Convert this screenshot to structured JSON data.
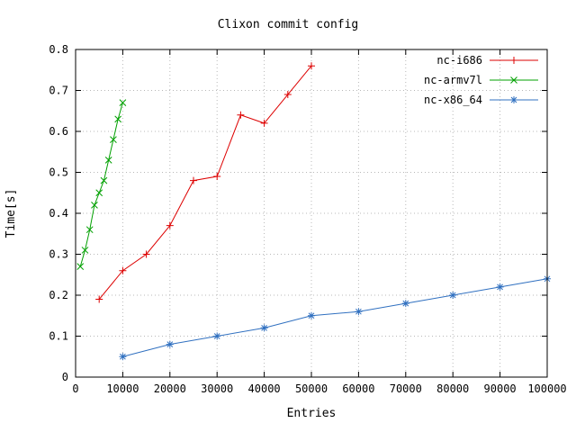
{
  "chart_data": {
    "type": "line",
    "title": "Clixon commit config",
    "xlabel": "Entries",
    "ylabel": "Time[s]",
    "xlim": [
      0,
      100000
    ],
    "ylim": [
      0,
      0.8
    ],
    "grid": true,
    "legend_position": "top-right-inside",
    "xticks": {
      "values": [
        0,
        10000,
        20000,
        30000,
        40000,
        50000,
        60000,
        70000,
        80000,
        90000,
        100000
      ],
      "labels": [
        "0",
        "10000",
        "20000",
        "30000",
        "40000",
        "50000",
        "60000",
        "70000",
        "80000",
        "90000",
        "100000"
      ]
    },
    "yticks": {
      "values": [
        0,
        0.1,
        0.2,
        0.3,
        0.4,
        0.5,
        0.6,
        0.7,
        0.8
      ],
      "labels": [
        "0",
        "0.1",
        "0.2",
        "0.3",
        "0.4",
        "0.5",
        "0.6",
        "0.7",
        "0.8"
      ]
    },
    "series": [
      {
        "name": "nc-i686",
        "color": "#dd0000",
        "marker": "plus",
        "x": [
          5000,
          10000,
          15000,
          20000,
          25000,
          30000,
          35000,
          40000,
          45000,
          50000
        ],
        "y": [
          0.19,
          0.26,
          0.3,
          0.37,
          0.48,
          0.49,
          0.64,
          0.62,
          0.69,
          0.76
        ]
      },
      {
        "name": "nc-armv7l",
        "color": "#00a000",
        "marker": "x",
        "x": [
          1000,
          2000,
          3000,
          4000,
          5000,
          6000,
          7000,
          8000,
          9000,
          10000
        ],
        "y": [
          0.27,
          0.31,
          0.36,
          0.42,
          0.45,
          0.48,
          0.53,
          0.58,
          0.63,
          0.67
        ]
      },
      {
        "name": "nc-x86_64",
        "color": "#3070c0",
        "marker": "asterisk",
        "x": [
          10000,
          20000,
          30000,
          40000,
          50000,
          60000,
          70000,
          80000,
          90000,
          100000
        ],
        "y": [
          0.05,
          0.08,
          0.1,
          0.12,
          0.15,
          0.16,
          0.18,
          0.2,
          0.22,
          0.24
        ]
      }
    ]
  }
}
